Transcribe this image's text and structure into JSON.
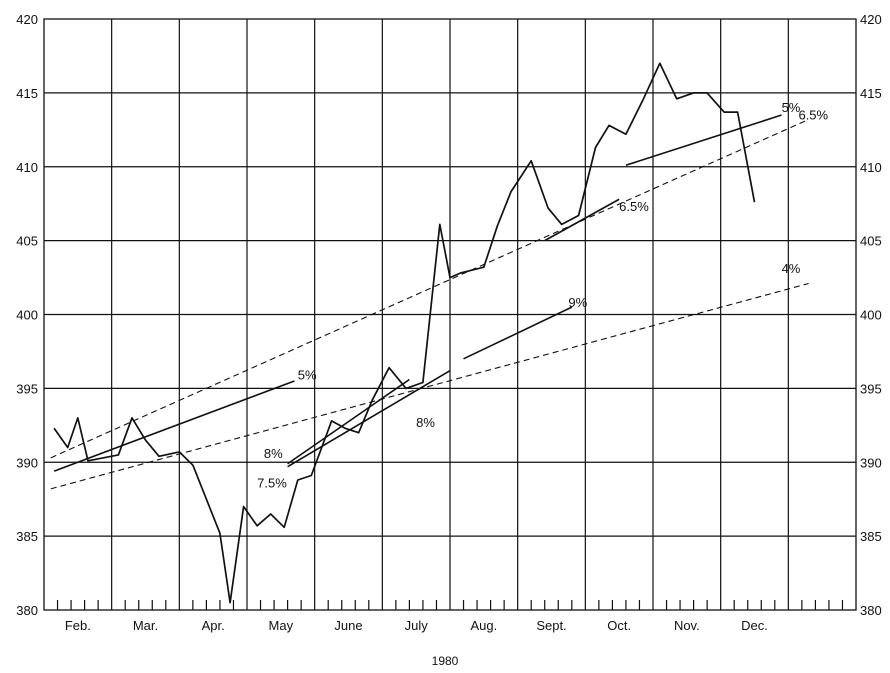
{
  "chart_data": {
    "type": "line",
    "title": "",
    "xlabel": "1980",
    "ylabel": "",
    "xlim": [
      0,
      12
    ],
    "ylim": [
      380,
      420
    ],
    "yticks": [
      380,
      385,
      390,
      395,
      400,
      405,
      410,
      415,
      420
    ],
    "grid": true,
    "categories": [
      "Feb.",
      "Mar.",
      "Apr.",
      "May",
      "June",
      "July",
      "Aug.",
      "Sept.",
      "Oct.",
      "Nov.",
      "Dec."
    ],
    "series": [
      {
        "x": [
          0.15,
          0.35,
          0.5,
          0.65,
          1.1,
          1.3,
          1.5,
          1.7,
          2.0,
          2.2,
          2.6,
          2.75,
          2.95,
          3.15,
          3.35,
          3.55,
          3.75,
          3.95,
          4.25,
          4.45,
          4.65,
          4.85,
          5.1,
          5.35,
          5.6,
          5.85,
          6.0,
          6.15,
          6.5,
          6.7,
          6.9,
          7.2,
          7.45,
          7.65,
          7.9,
          8.15,
          8.35,
          8.6,
          8.85,
          9.1,
          9.35,
          9.6,
          9.8,
          10.05,
          10.25,
          10.5,
          10.75,
          10.95,
          11.15,
          11.3
        ],
        "y": [
          392.3,
          391.0,
          393.0,
          390.1,
          390.5,
          393.0,
          391.5,
          390.4,
          390.7,
          389.8,
          385.2,
          380.5,
          387.0,
          385.7,
          386.5,
          385.6,
          388.8,
          389.1,
          392.8,
          392.3,
          392.0,
          394.2,
          396.4,
          395.0,
          395.4,
          406.1,
          402.5,
          402.8,
          403.2,
          406.0,
          408.3,
          410.4,
          407.2,
          406.1,
          406.7,
          411.3,
          412.8,
          412.2,
          414.5,
          417.0,
          414.6,
          415.0,
          415.0,
          413.7,
          413.7,
          407.6,
          null,
          null,
          null,
          null
        ]
      }
    ],
    "trend_lines": [
      {
        "label": "5%",
        "style": "solid",
        "x": [
          0.15,
          3.7
        ],
        "y": [
          389.4,
          395.5
        ]
      },
      {
        "label": "7.5%",
        "style": "solid",
        "x": [
          3.6,
          6.0
        ],
        "y": [
          389.7,
          396.2
        ]
      },
      {
        "label": "8%",
        "style": "solid",
        "x": [
          3.6,
          5.4
        ],
        "y": [
          389.9,
          395.6
        ]
      },
      {
        "label": "9%",
        "style": "solid",
        "x": [
          6.2,
          7.8
        ],
        "y": [
          397.0,
          400.5
        ]
      },
      {
        "label": "6.5%",
        "style": "solid",
        "x": [
          7.4,
          8.5
        ],
        "y": [
          405.0,
          407.8
        ]
      },
      {
        "label": "5%",
        "style": "solid",
        "x": [
          8.6,
          10.9
        ],
        "y": [
          410.1,
          413.5
        ]
      },
      {
        "label": "6.5%",
        "style": "dashed",
        "x": [
          0.1,
          11.3
        ],
        "y": [
          390.3,
          413.2
        ]
      },
      {
        "label": "4%",
        "style": "dashed",
        "x": [
          0.1,
          11.3
        ],
        "y": [
          388.2,
          402.1
        ]
      }
    ],
    "labels": [
      {
        "text": "5%",
        "x": 3.75,
        "y": 395.6
      },
      {
        "text": "8%",
        "x": 3.25,
        "y": 390.3
      },
      {
        "text": "7.5%",
        "x": 3.15,
        "y": 388.3
      },
      {
        "text": "8%",
        "x": 5.5,
        "y": 392.4
      },
      {
        "text": "9%",
        "x": 7.75,
        "y": 400.5
      },
      {
        "text": "6.5%",
        "x": 8.5,
        "y": 407.0
      },
      {
        "text": "5%",
        "x": 10.9,
        "y": 413.7
      },
      {
        "text": "6.5%",
        "x": 11.15,
        "y": 413.2
      },
      {
        "text": "4%",
        "x": 10.9,
        "y": 402.8
      }
    ]
  }
}
